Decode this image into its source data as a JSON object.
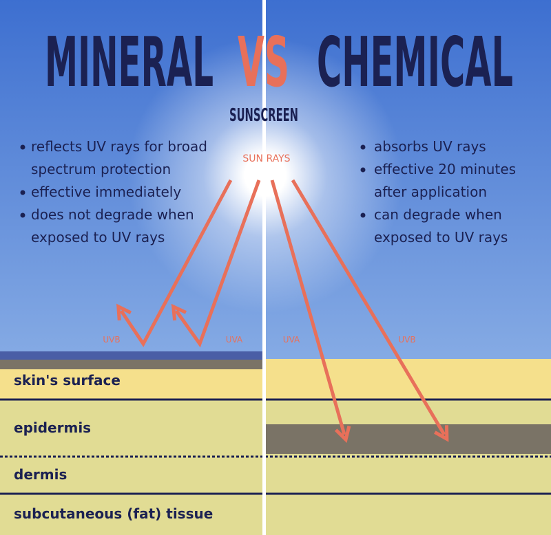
{
  "title": {
    "left": "MINERAL",
    "vs": "VS",
    "right": "CHEMICAL",
    "subtitle": "SUNSCREEN"
  },
  "mineral": {
    "bullets": [
      [
        "reflects UV rays for broad",
        "spectrum protection"
      ],
      [
        "effective immediately"
      ],
      [
        "does not degrade when",
        "exposed to UV rays"
      ]
    ]
  },
  "chemical": {
    "bullets": [
      [
        "absorbs UV rays"
      ],
      [
        "effective 20 minutes",
        "after application"
      ],
      [
        "can degrade when",
        "exposed to UV rays"
      ]
    ]
  },
  "sun_label": "SUN RAYS",
  "rays": [
    "UVB",
    "UVA",
    "UVA",
    "UVB"
  ],
  "layers": [
    "skin's surface",
    "epidermis",
    "dermis",
    "subcutaneous (fat) tissue"
  ]
}
